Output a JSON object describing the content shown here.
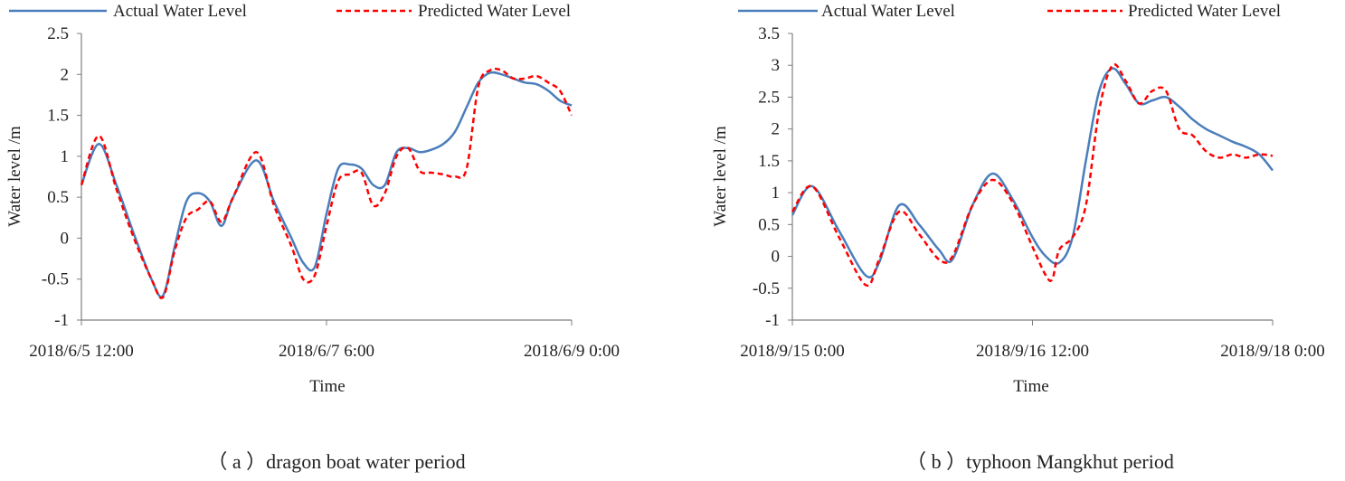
{
  "colors": {
    "actual": "#4A7EBB",
    "predicted": "#FF0000",
    "axis": "#7f7f7f"
  },
  "chart_data": [
    {
      "type": "line",
      "caption": "（ a ）dragon boat water period",
      "xlabel": "Time",
      "ylabel": "Water level /m",
      "ylim": [
        -1,
        2.5
      ],
      "ytick_values": [
        -1,
        -0.5,
        0,
        0.5,
        1,
        1.5,
        2,
        2.5
      ],
      "ytick_labels": [
        "-1",
        "-0.5",
        "0",
        "0.5",
        "1",
        "1.5",
        "2",
        "2.5"
      ],
      "xlim": [
        0,
        84
      ],
      "xticks": [
        {
          "value": 0,
          "label": "2018/6/5 12:00"
        },
        {
          "value": 42,
          "label": "2018/6/7 6:00"
        },
        {
          "value": 84,
          "label": "2018/6/9 0:00"
        }
      ],
      "legend": [
        "Actual Water Level",
        "Predicted Water Level"
      ],
      "series": [
        {
          "name": "Actual Water Level",
          "style": "solid",
          "points": [
            [
              0,
              0.65
            ],
            [
              3,
              1.15
            ],
            [
              6,
              0.65
            ],
            [
              9,
              0.05
            ],
            [
              12,
              -0.5
            ],
            [
              14,
              -0.7
            ],
            [
              16,
              -0.1
            ],
            [
              18,
              0.45
            ],
            [
              20,
              0.55
            ],
            [
              22,
              0.45
            ],
            [
              24,
              0.15
            ],
            [
              26,
              0.5
            ],
            [
              30,
              0.95
            ],
            [
              33,
              0.45
            ],
            [
              36,
              0.0
            ],
            [
              38,
              -0.3
            ],
            [
              40,
              -0.35
            ],
            [
              42,
              0.3
            ],
            [
              44,
              0.85
            ],
            [
              46,
              0.9
            ],
            [
              48,
              0.85
            ],
            [
              50,
              0.65
            ],
            [
              52,
              0.65
            ],
            [
              54,
              1.05
            ],
            [
              56,
              1.1
            ],
            [
              58,
              1.05
            ],
            [
              60,
              1.08
            ],
            [
              62,
              1.15
            ],
            [
              64,
              1.3
            ],
            [
              66,
              1.6
            ],
            [
              68,
              1.9
            ],
            [
              70,
              2.02
            ],
            [
              72,
              2.0
            ],
            [
              74,
              1.95
            ],
            [
              76,
              1.9
            ],
            [
              78,
              1.88
            ],
            [
              80,
              1.8
            ],
            [
              82,
              1.68
            ],
            [
              84,
              1.62
            ]
          ]
        },
        {
          "name": "Predicted Water Level",
          "style": "dashed",
          "points": [
            [
              0,
              0.65
            ],
            [
              3,
              1.25
            ],
            [
              6,
              0.6
            ],
            [
              9,
              0.0
            ],
            [
              12,
              -0.5
            ],
            [
              14,
              -0.72
            ],
            [
              16,
              -0.15
            ],
            [
              18,
              0.25
            ],
            [
              20,
              0.35
            ],
            [
              22,
              0.45
            ],
            [
              24,
              0.2
            ],
            [
              26,
              0.5
            ],
            [
              30,
              1.05
            ],
            [
              33,
              0.4
            ],
            [
              36,
              -0.1
            ],
            [
              38,
              -0.5
            ],
            [
              40,
              -0.45
            ],
            [
              42,
              0.15
            ],
            [
              44,
              0.7
            ],
            [
              46,
              0.78
            ],
            [
              48,
              0.8
            ],
            [
              50,
              0.4
            ],
            [
              52,
              0.55
            ],
            [
              54,
              1.0
            ],
            [
              56,
              1.1
            ],
            [
              58,
              0.82
            ],
            [
              60,
              0.8
            ],
            [
              62,
              0.78
            ],
            [
              64,
              0.75
            ],
            [
              66,
              0.85
            ],
            [
              68,
              1.85
            ],
            [
              70,
              2.05
            ],
            [
              72,
              2.05
            ],
            [
              74,
              1.95
            ],
            [
              76,
              1.95
            ],
            [
              78,
              1.98
            ],
            [
              80,
              1.9
            ],
            [
              82,
              1.8
            ],
            [
              84,
              1.5
            ]
          ]
        }
      ]
    },
    {
      "type": "line",
      "caption": "（ b ）typhoon Mangkhut period",
      "xlabel": "Time",
      "ylabel": "Water level /m",
      "ylim": [
        -1,
        3.5
      ],
      "ytick_values": [
        -1,
        -0.5,
        0,
        0.5,
        1,
        1.5,
        2,
        2.5,
        3,
        3.5
      ],
      "ytick_labels": [
        "-1",
        "-0.5",
        "0",
        "0.5",
        "1",
        "1.5",
        "2",
        "2.5",
        "3",
        "3.5"
      ],
      "xlim": [
        0,
        72
      ],
      "xticks": [
        {
          "value": 0,
          "label": "2018/9/15 0:00"
        },
        {
          "value": 36,
          "label": "2018/9/16 12:00"
        },
        {
          "value": 72,
          "label": "2018/9/18 0:00"
        }
      ],
      "legend": [
        "Actual Water Level",
        "Predicted Water Level"
      ],
      "series": [
        {
          "name": "Actual Water Level",
          "style": "solid",
          "points": [
            [
              0,
              0.65
            ],
            [
              3,
              1.1
            ],
            [
              7,
              0.4
            ],
            [
              11,
              -0.3
            ],
            [
              13,
              -0.1
            ],
            [
              16,
              0.8
            ],
            [
              19,
              0.5
            ],
            [
              22,
              0.1
            ],
            [
              24,
              -0.05
            ],
            [
              27,
              0.8
            ],
            [
              30,
              1.3
            ],
            [
              33,
              0.9
            ],
            [
              36,
              0.3
            ],
            [
              38,
              0.0
            ],
            [
              40,
              -0.1
            ],
            [
              42,
              0.3
            ],
            [
              44,
              1.5
            ],
            [
              46,
              2.6
            ],
            [
              48,
              2.95
            ],
            [
              50,
              2.7
            ],
            [
              52,
              2.4
            ],
            [
              54,
              2.45
            ],
            [
              56,
              2.5
            ],
            [
              58,
              2.35
            ],
            [
              60,
              2.15
            ],
            [
              62,
              2.0
            ],
            [
              64,
              1.9
            ],
            [
              66,
              1.8
            ],
            [
              68,
              1.72
            ],
            [
              70,
              1.6
            ],
            [
              72,
              1.35
            ]
          ]
        },
        {
          "name": "Predicted Water Level",
          "style": "dashed",
          "points": [
            [
              0,
              0.7
            ],
            [
              3,
              1.1
            ],
            [
              7,
              0.3
            ],
            [
              11,
              -0.45
            ],
            [
              13,
              -0.05
            ],
            [
              16,
              0.7
            ],
            [
              19,
              0.35
            ],
            [
              22,
              -0.05
            ],
            [
              24,
              0.0
            ],
            [
              27,
              0.8
            ],
            [
              30,
              1.2
            ],
            [
              33,
              0.85
            ],
            [
              36,
              0.15
            ],
            [
              38,
              -0.3
            ],
            [
              39,
              -0.35
            ],
            [
              40,
              0.1
            ],
            [
              42,
              0.3
            ],
            [
              44,
              0.8
            ],
            [
              46,
              2.3
            ],
            [
              48,
              3.0
            ],
            [
              50,
              2.75
            ],
            [
              52,
              2.4
            ],
            [
              54,
              2.6
            ],
            [
              56,
              2.6
            ],
            [
              58,
              2.0
            ],
            [
              60,
              1.9
            ],
            [
              62,
              1.65
            ],
            [
              64,
              1.55
            ],
            [
              66,
              1.6
            ],
            [
              68,
              1.55
            ],
            [
              70,
              1.6
            ],
            [
              72,
              1.58
            ]
          ]
        }
      ]
    }
  ]
}
